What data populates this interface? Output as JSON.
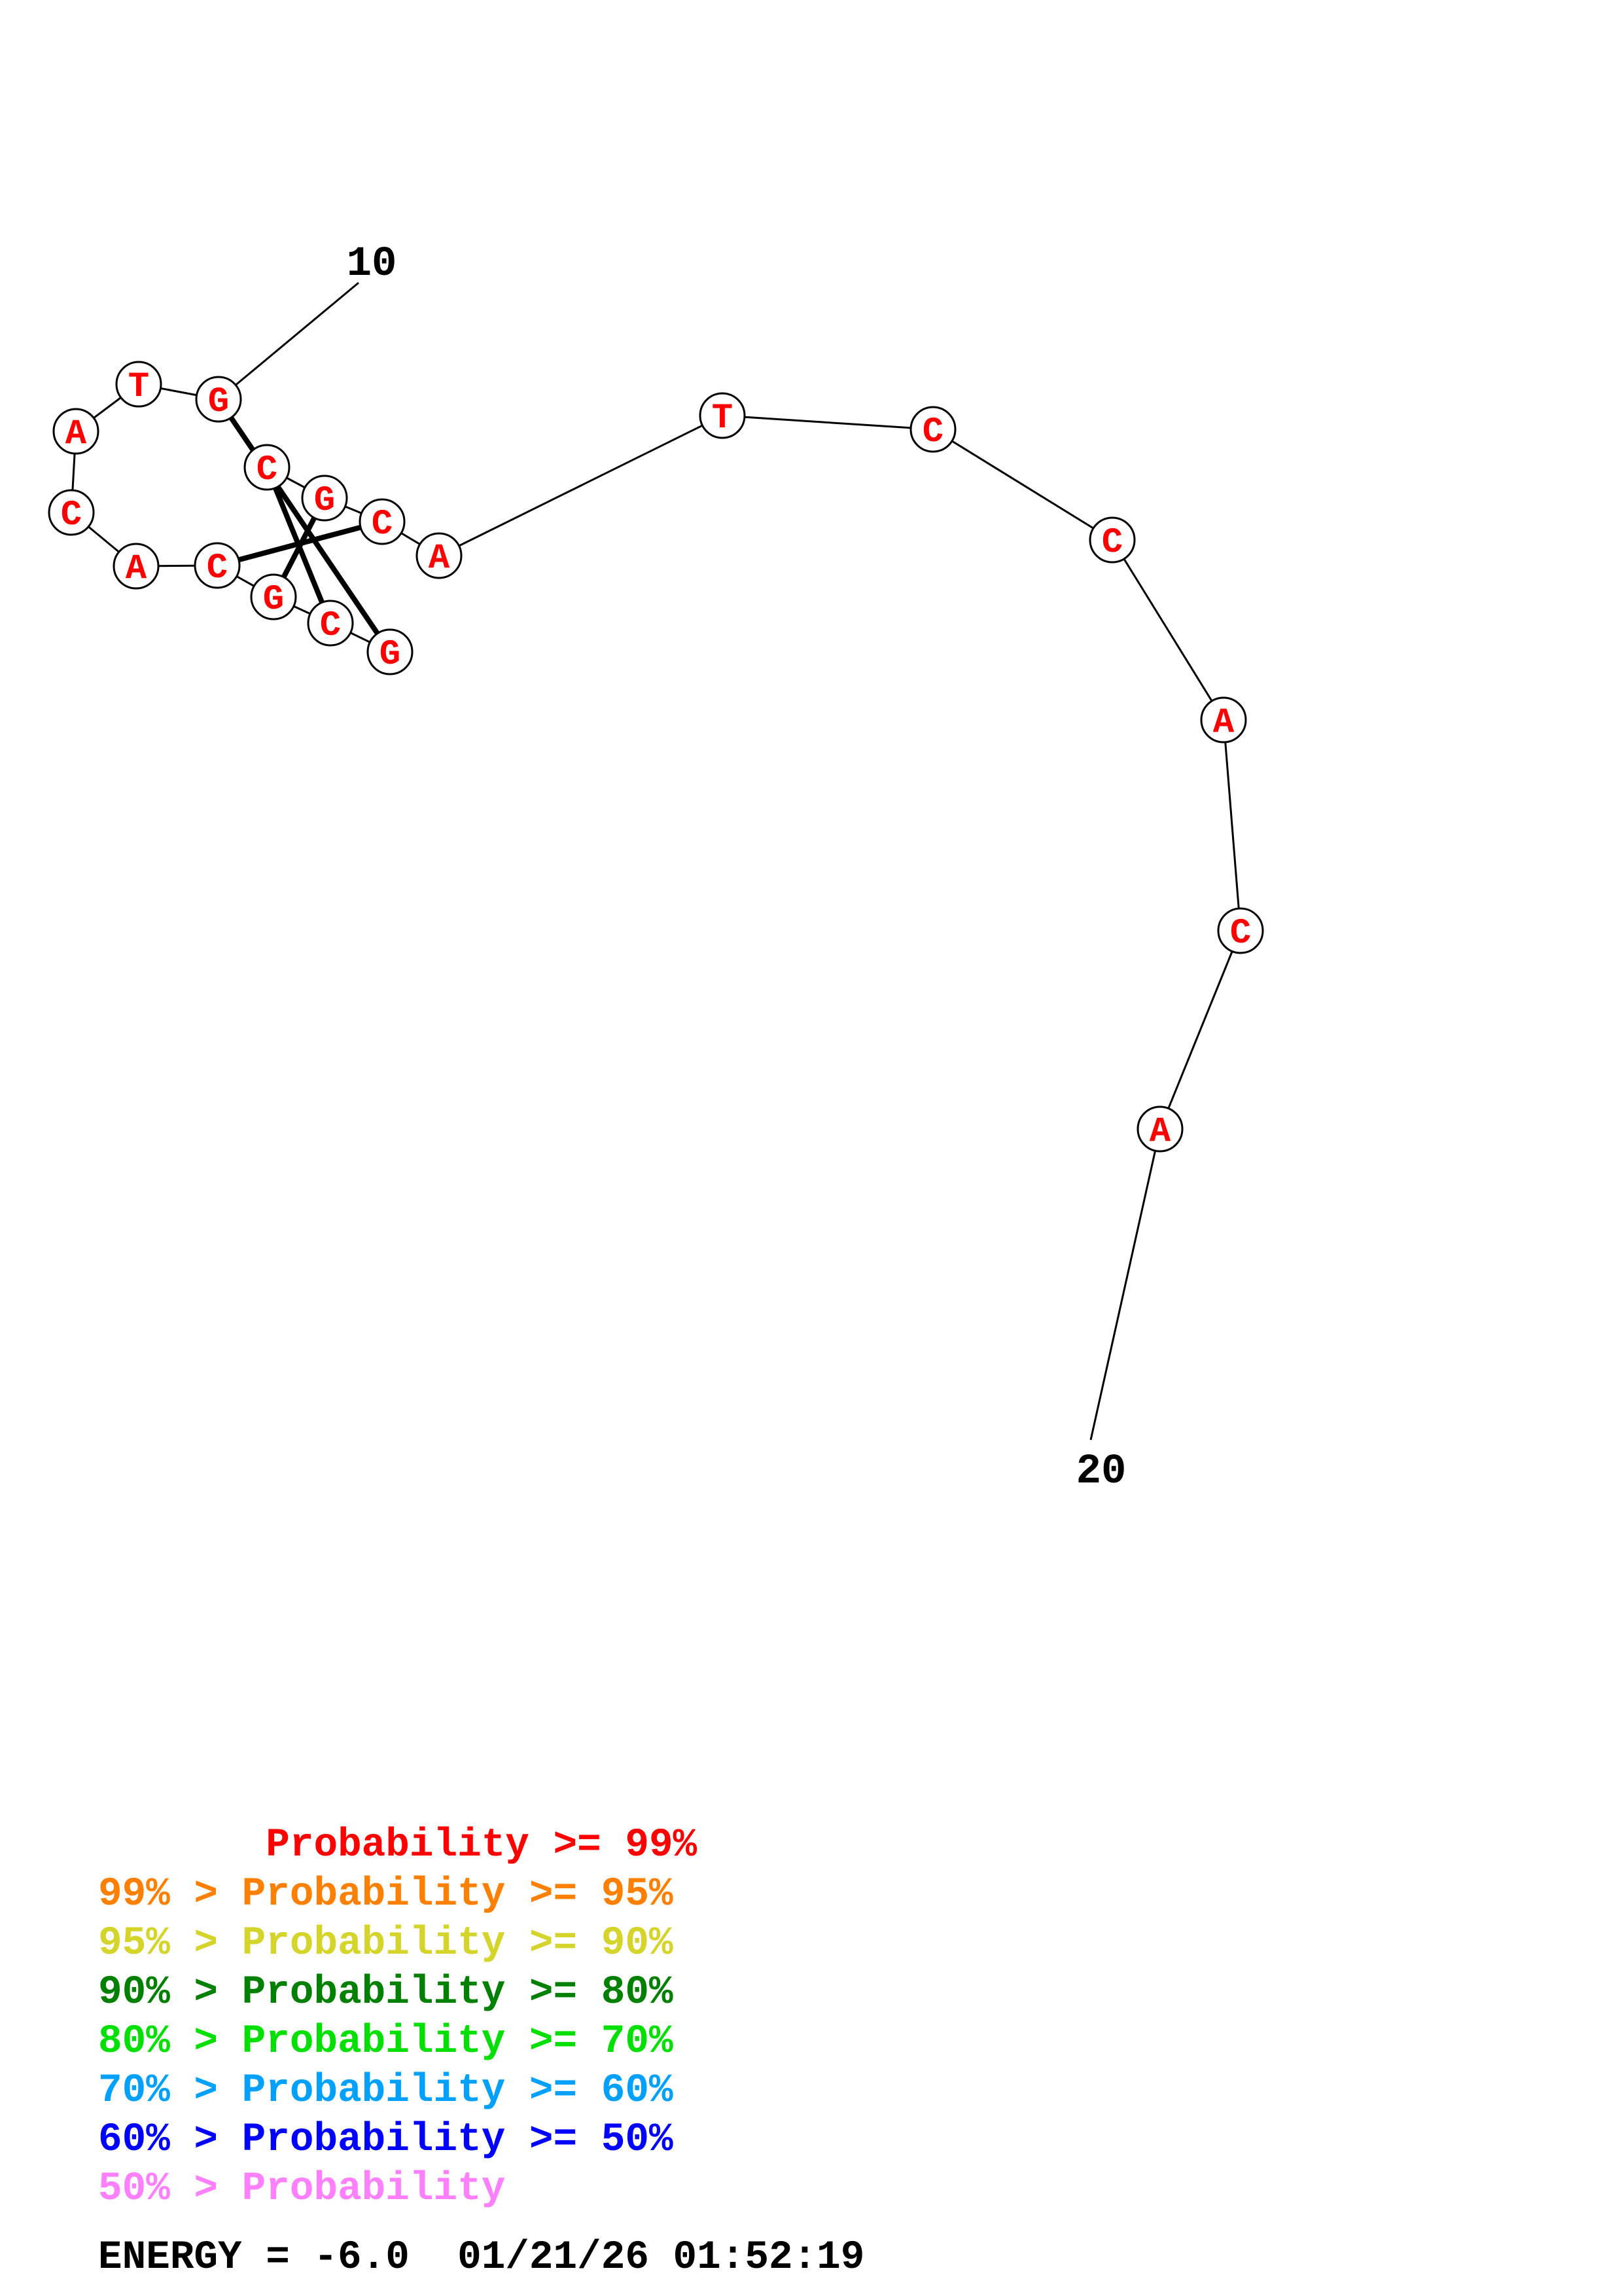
{
  "structure": {
    "sequence": [
      "G",
      "C",
      "G",
      "C",
      "A",
      "C",
      "A",
      "T",
      "G",
      "C",
      "G",
      "C",
      "A",
      "T",
      "C",
      "C",
      "A",
      "C",
      "A"
    ],
    "nucleotide_color": "#ff0000",
    "pairs": [
      [
        1,
        9
      ],
      [
        2,
        10
      ],
      [
        3,
        11
      ],
      [
        4,
        12
      ]
    ],
    "position_labels": [
      {
        "text": "10"
      },
      {
        "text": "20"
      }
    ]
  },
  "legend": {
    "rows": [
      {
        "prefix": "       ",
        "text": "Probability >= 99%",
        "color": "#ff0000"
      },
      {
        "prefix": "99% > ",
        "text": "Probability >= 95%",
        "color": "#ff8000"
      },
      {
        "prefix": "95% > ",
        "text": "Probability >= 90%",
        "color": "#d4d42a"
      },
      {
        "prefix": "90% > ",
        "text": "Probability >= 80%",
        "color": "#008000"
      },
      {
        "prefix": "80% > ",
        "text": "Probability >= 70%",
        "color": "#00e000"
      },
      {
        "prefix": "70% > ",
        "text": "Probability >= 60%",
        "color": "#00a0ff"
      },
      {
        "prefix": "60% > ",
        "text": "Probability >= 50%",
        "color": "#0000ff"
      },
      {
        "prefix": "50% > ",
        "text": "Probability",
        "color": "#ff80ff"
      }
    ]
  },
  "footer": {
    "energy": "ENERGY = -6.0  01/21/26 01:52:19"
  }
}
